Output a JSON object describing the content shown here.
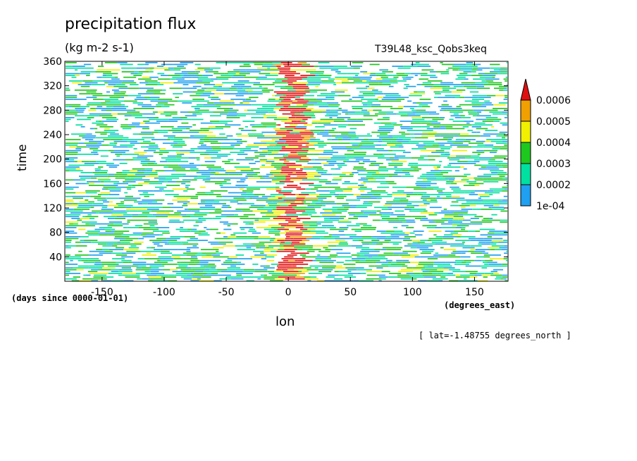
{
  "chart_data": {
    "type": "heatmap",
    "title": "precipitation flux",
    "units": "(kg m-2 s-1)",
    "run_name": "T39L48_ksc_Qobs3keq",
    "xlabel": "lon",
    "ylabel": "time",
    "x_units": "(degrees_east)",
    "y_units": "(days since 0000-01-01)",
    "annotation": "[ lat=-1.48755 degrees_north ]",
    "xlim": [
      -180,
      177
    ],
    "ylim": [
      0,
      360
    ],
    "x_ticks": [
      -150,
      -100,
      -50,
      0,
      50,
      100,
      150
    ],
    "x_tick_labels": [
      "-150",
      "-100",
      "-50",
      "0",
      "50",
      "100",
      "150"
    ],
    "y_ticks": [
      40,
      80,
      120,
      160,
      200,
      240,
      280,
      320,
      360
    ],
    "y_tick_labels": [
      "40",
      "80",
      "120",
      "160",
      "200",
      "240",
      "280",
      "320",
      "360"
    ],
    "colorbar": {
      "levels": [
        0.0001,
        0.0002,
        0.0003,
        0.0004,
        0.0005,
        0.0006
      ],
      "level_labels": [
        "1e-04",
        "0.0002",
        "0.0003",
        "0.0004",
        "0.0005",
        "0.0006"
      ],
      "colors": [
        "#1fa0f0",
        "#00e0a0",
        "#1ec81e",
        "#f0f000",
        "#f0a000",
        "#e01010"
      ],
      "extend": "max"
    },
    "features": [
      {
        "description_hidden": true,
        "lon_center": 0,
        "lon_halfwidth": 15
      }
    ]
  }
}
